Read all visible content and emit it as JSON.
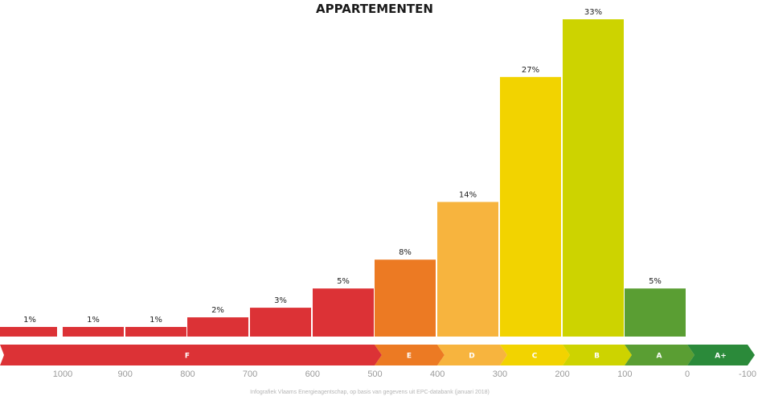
{
  "chart_data": {
    "type": "bar",
    "title": "APPARTEMENTEN",
    "categories": [
      "1000+",
      "1000-900",
      "900-800",
      "800-700",
      "700-600",
      "600-500",
      "500-400",
      "400-300",
      "300-200",
      "200-100",
      "100-0"
    ],
    "values": [
      1,
      1,
      1,
      2,
      3,
      5,
      8,
      14,
      27,
      33,
      5
    ],
    "value_labels": [
      "1%",
      "1%",
      "1%",
      "2%",
      "3%",
      "5%",
      "8%",
      "14%",
      "27%",
      "33%",
      "5%"
    ],
    "bar_colors": [
      "#dc3236",
      "#dc3236",
      "#dc3236",
      "#dc3236",
      "#dc3236",
      "#dc3236",
      "#ec7a23",
      "#f7b43e",
      "#f2d300",
      "#cdd300",
      "#5a9e33"
    ],
    "ylim": [
      0,
      33
    ],
    "grid": false,
    "legend": "none",
    "energy_bands": [
      {
        "label": "F",
        "color": "#dc3236"
      },
      {
        "label": "E",
        "color": "#ec7a23"
      },
      {
        "label": "D",
        "color": "#f7b43e"
      },
      {
        "label": "C",
        "color": "#f2d300"
      },
      {
        "label": "B",
        "color": "#cdd300"
      },
      {
        "label": "A",
        "color": "#5a9e33"
      },
      {
        "label": "A+",
        "color": "#2b8a3a"
      }
    ],
    "x_ticks": [
      "1000",
      "900",
      "800",
      "700",
      "600",
      "500",
      "400",
      "300",
      "200",
      "100",
      "0",
      "-100"
    ],
    "source": "Infografiek Vlaams Energieagentschap, op basis van gegevens uit EPC-databank (januari 2018)"
  }
}
